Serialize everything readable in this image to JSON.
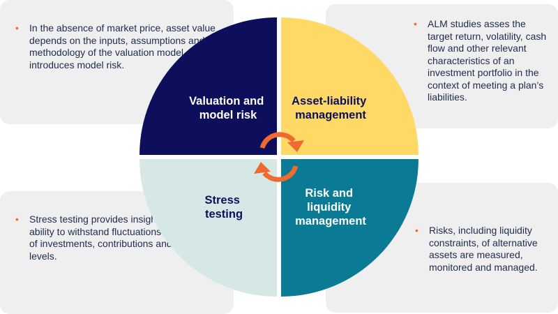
{
  "quadrants": {
    "top_left": {
      "label_lines": [
        "Valuation and",
        "model risk"
      ],
      "color": "#0d0f5c",
      "text_color": "#ffffff",
      "description": "In the absence of market price, asset value depends on the inputs, assumptions and methodology of the valuation model, which introduces model risk."
    },
    "top_right": {
      "label_lines": [
        "Asset-liability",
        "management"
      ],
      "color": "#ffd966",
      "text_color": "#0d0f5c",
      "description": "ALM studies asses the target return, volatility, cash flow and other relevant characteristics of an investment portfolio in the context of meeting a plan’s liabilities."
    },
    "bottom_left": {
      "label_lines": [
        "Stress",
        "testing"
      ],
      "color": "#d6e8e6",
      "text_color": "#0d0f5c",
      "description": "Stress testing provides insight into a plan’s ability to withstand fluctuations in the value of investments, contributions and benefit levels."
    },
    "bottom_right": {
      "label_lines": [
        "Risk and",
        "liquidity",
        "management"
      ],
      "color": "#0b7a95",
      "text_color": "#ffffff",
      "description": "Risks, including liquidity constraints, of alternative assets are measured, monitored and managed."
    }
  },
  "colors": {
    "arrow": "#ef6a2e",
    "bullet": "#ef6a2e",
    "card_background": "#efefef",
    "body_text": "#1f2b4d"
  }
}
